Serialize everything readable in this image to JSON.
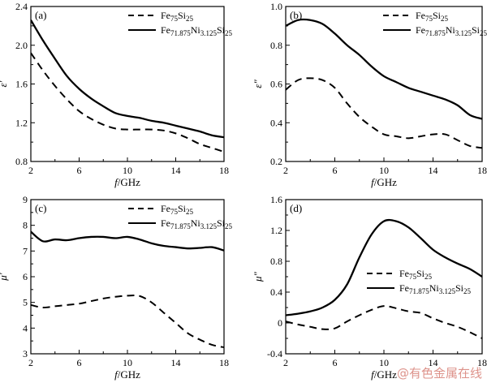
{
  "chart_data": [
    {
      "type": "line",
      "panel_label": "(a)",
      "ylabel": "ε′",
      "xlabel": "f/GHz",
      "xlim": [
        2,
        18
      ],
      "ylim": [
        0.8,
        2.4
      ],
      "xticks": [
        2,
        6,
        10,
        14,
        18
      ],
      "yticks": [
        0.8,
        1.2,
        1.6,
        2.0,
        2.4
      ],
      "x_tick_labels": [
        "2",
        "6",
        "10",
        "14",
        "18"
      ],
      "y_tick_labels": [
        "0.8",
        "1.2",
        "1.6",
        "2.0",
        "2.4"
      ],
      "legend_position": "top-right",
      "series": [
        {
          "name": "Fe75Si25",
          "legend_main": "Fe",
          "legend_sub": "75",
          "legend_main2": "Si",
          "legend_sub2": "25",
          "style": "dashed",
          "x": [
            2,
            3,
            4,
            5,
            6,
            7,
            8,
            9,
            10,
            11,
            12,
            13,
            14,
            15,
            16,
            17,
            18
          ],
          "y": [
            1.92,
            1.74,
            1.58,
            1.44,
            1.32,
            1.24,
            1.18,
            1.14,
            1.13,
            1.13,
            1.13,
            1.12,
            1.09,
            1.04,
            0.98,
            0.94,
            0.9
          ]
        },
        {
          "name": "Fe71.875Ni3.125Si25",
          "legend_main": "Fe",
          "legend_sub": "71.875",
          "legend_main2": "Ni",
          "legend_sub2": "3.125",
          "legend_main3": "Si",
          "legend_sub3": "25",
          "style": "solid",
          "x": [
            2,
            3,
            4,
            5,
            6,
            7,
            8,
            9,
            10,
            11,
            12,
            13,
            14,
            15,
            16,
            17,
            18
          ],
          "y": [
            2.26,
            2.05,
            1.86,
            1.68,
            1.55,
            1.45,
            1.37,
            1.3,
            1.27,
            1.25,
            1.22,
            1.2,
            1.17,
            1.14,
            1.11,
            1.07,
            1.05
          ]
        }
      ]
    },
    {
      "type": "line",
      "panel_label": "(b)",
      "ylabel": "ε″",
      "xlabel": "f/GHz",
      "xlim": [
        2,
        18
      ],
      "ylim": [
        0.2,
        1.0
      ],
      "xticks": [
        2,
        6,
        10,
        14,
        18
      ],
      "yticks": [
        0.2,
        0.4,
        0.6,
        0.8,
        1.0
      ],
      "x_tick_labels": [
        "2",
        "6",
        "10",
        "14",
        "18"
      ],
      "y_tick_labels": [
        "0.2",
        "0.4",
        "0.6",
        "0.8",
        "1.0"
      ],
      "legend_position": "top-right",
      "series": [
        {
          "name": "Fe75Si25",
          "legend_main": "Fe",
          "legend_sub": "75",
          "legend_main2": "Si",
          "legend_sub2": "25",
          "style": "dashed",
          "x": [
            2,
            3,
            4,
            5,
            6,
            7,
            8,
            9,
            10,
            11,
            12,
            13,
            14,
            15,
            16,
            17,
            18
          ],
          "y": [
            0.57,
            0.62,
            0.63,
            0.62,
            0.58,
            0.5,
            0.43,
            0.38,
            0.34,
            0.33,
            0.32,
            0.33,
            0.34,
            0.34,
            0.31,
            0.28,
            0.27
          ]
        },
        {
          "name": "Fe71.875Ni3.125Si25",
          "legend_main": "Fe",
          "legend_sub": "71.875",
          "legend_main2": "Ni",
          "legend_sub2": "3.125",
          "legend_main3": "Si",
          "legend_sub3": "25",
          "style": "solid",
          "x": [
            2,
            3,
            4,
            5,
            6,
            7,
            8,
            9,
            10,
            11,
            12,
            13,
            14,
            15,
            16,
            17,
            18
          ],
          "y": [
            0.9,
            0.93,
            0.93,
            0.91,
            0.86,
            0.8,
            0.75,
            0.69,
            0.64,
            0.61,
            0.58,
            0.56,
            0.54,
            0.52,
            0.49,
            0.44,
            0.42
          ]
        }
      ]
    },
    {
      "type": "line",
      "panel_label": "(c)",
      "ylabel": "μ′",
      "xlabel": "f/GHz",
      "xlim": [
        2,
        18
      ],
      "ylim": [
        3,
        9
      ],
      "xticks": [
        2,
        6,
        10,
        14,
        18
      ],
      "yticks": [
        3,
        4,
        5,
        6,
        7,
        8,
        9
      ],
      "x_tick_labels": [
        "2",
        "6",
        "10",
        "14",
        "18"
      ],
      "y_tick_labels": [
        "3",
        "4",
        "5",
        "6",
        "7",
        "8",
        "9"
      ],
      "legend_position": "top-right",
      "series": [
        {
          "name": "Fe75Si25",
          "legend_main": "Fe",
          "legend_sub": "75",
          "legend_main2": "Si",
          "legend_sub2": "25",
          "style": "dashed",
          "x": [
            2,
            3,
            4,
            5,
            6,
            7,
            8,
            9,
            10,
            11,
            12,
            13,
            14,
            15,
            16,
            17,
            18
          ],
          "y": [
            4.9,
            4.8,
            4.85,
            4.9,
            4.95,
            5.05,
            5.15,
            5.22,
            5.26,
            5.25,
            5.0,
            4.6,
            4.2,
            3.8,
            3.55,
            3.35,
            3.25
          ]
        },
        {
          "name": "Fe71.875Ni3.125Si25",
          "legend_main": "Fe",
          "legend_sub": "71.875",
          "legend_main2": "Ni",
          "legend_sub2": "3.125",
          "legend_main3": "Si",
          "legend_sub3": "25",
          "style": "solid",
          "x": [
            2,
            3,
            4,
            5,
            6,
            7,
            8,
            9,
            10,
            11,
            12,
            13,
            14,
            15,
            16,
            17,
            18
          ],
          "y": [
            7.75,
            7.38,
            7.45,
            7.42,
            7.5,
            7.55,
            7.55,
            7.5,
            7.55,
            7.45,
            7.3,
            7.2,
            7.15,
            7.1,
            7.12,
            7.15,
            7.02
          ]
        }
      ]
    },
    {
      "type": "line",
      "panel_label": "(d)",
      "ylabel": "μ″",
      "xlabel": "f/GHz",
      "xlim": [
        2,
        18
      ],
      "ylim": [
        -0.4,
        1.6
      ],
      "xticks": [
        2,
        6,
        10,
        14,
        18
      ],
      "yticks": [
        -0.4,
        0,
        0.4,
        0.8,
        1.2,
        1.6
      ],
      "x_tick_labels": [
        "2",
        "6",
        "10",
        "14",
        "18"
      ],
      "y_tick_labels": [
        "-0.4",
        "0",
        "0.4",
        "0.8",
        "1.2",
        "1.6"
      ],
      "legend_position": "lower-left",
      "series": [
        {
          "name": "Fe75Si25",
          "legend_main": "Fe",
          "legend_sub": "75",
          "legend_main2": "Si",
          "legend_sub2": "25",
          "style": "dashed",
          "x": [
            2,
            3,
            4,
            5,
            6,
            7,
            8,
            9,
            10,
            11,
            12,
            13,
            14,
            15,
            16,
            17,
            18
          ],
          "y": [
            0.02,
            -0.02,
            -0.05,
            -0.08,
            -0.07,
            0.02,
            0.1,
            0.17,
            0.22,
            0.19,
            0.15,
            0.13,
            0.06,
            0.0,
            -0.05,
            -0.12,
            -0.2
          ]
        },
        {
          "name": "Fe71.875Ni3.125Si25",
          "legend_main": "Fe",
          "legend_sub": "71.875",
          "legend_main2": "Ni",
          "legend_sub2": "3.125",
          "legend_main3": "Si",
          "legend_sub3": "25",
          "style": "solid",
          "x": [
            2,
            3,
            4,
            5,
            6,
            7,
            8,
            9,
            10,
            11,
            12,
            13,
            14,
            15,
            16,
            17,
            18
          ],
          "y": [
            0.1,
            0.12,
            0.15,
            0.2,
            0.3,
            0.5,
            0.85,
            1.15,
            1.32,
            1.32,
            1.24,
            1.1,
            0.95,
            0.85,
            0.77,
            0.7,
            0.6
          ]
        }
      ]
    }
  ],
  "watermark": "@有色金属在线"
}
